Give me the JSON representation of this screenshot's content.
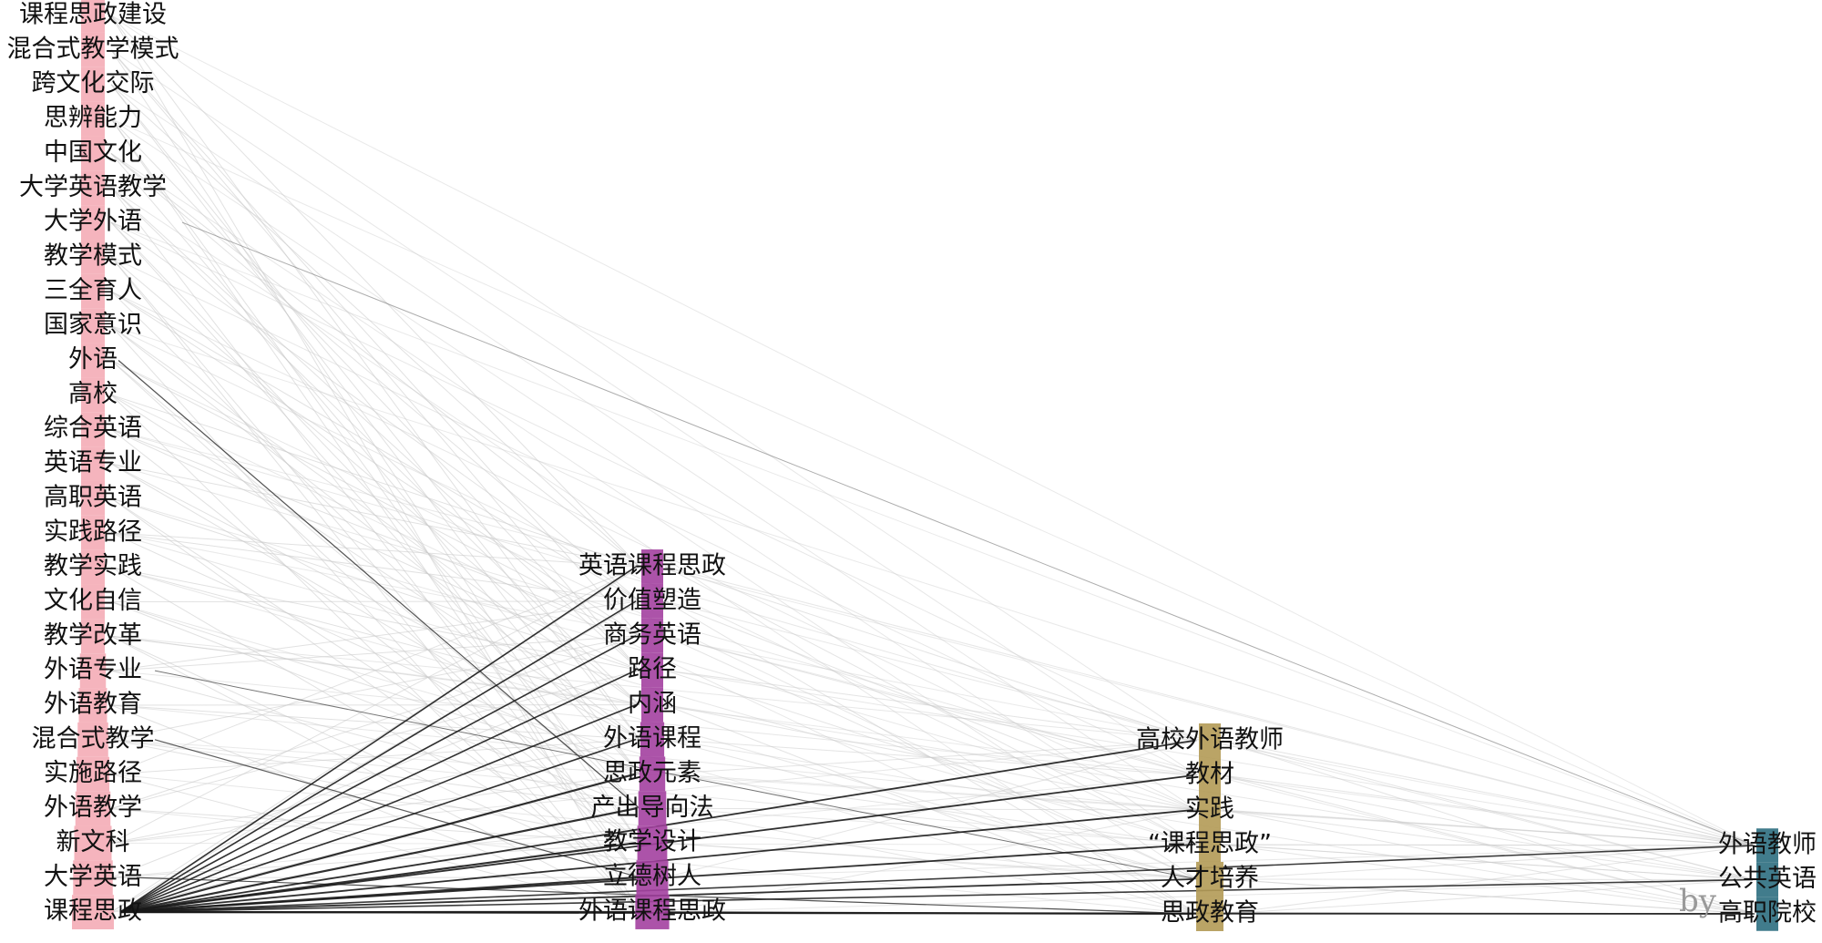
{
  "colors": {
    "column_1": "#f3a7b2",
    "column_2": "#a340a0",
    "column_3": "#b29a55",
    "column_4": "#2c6e80",
    "strong_link": "#1a1a1a",
    "faint_link": "#c9c9c9"
  },
  "watermark": "by",
  "columns": [
    {
      "id": "col1",
      "items": [
        "课程思政建设",
        "混合式教学模式",
        "跨文化交际",
        "思辨能力",
        "中国文化",
        "大学英语教学",
        "大学外语",
        "教学模式",
        "三全育人",
        "国家意识",
        "外语",
        "高校",
        "综合英语",
        "英语专业",
        "高职英语",
        "实践路径",
        "教学实践",
        "文化自信",
        "教学改革",
        "外语专业",
        "外语教育",
        "混合式教学",
        "实施路径",
        "外语教学",
        "新文科",
        "大学英语",
        "课程思政"
      ]
    },
    {
      "id": "col2",
      "items": [
        "英语课程思政",
        "价值塑造",
        "商务英语",
        "路径",
        "内涵",
        "外语课程",
        "思政元素",
        "产出导向法",
        "教学设计",
        "立德树人",
        "外语课程思政"
      ]
    },
    {
      "id": "col3",
      "items": [
        "高校外语教师",
        "教材",
        "实践",
        "“课程思政”",
        "人才培养",
        "思政教育"
      ]
    },
    {
      "id": "col4",
      "items": [
        "外语教师",
        "公共英语",
        "高职院校"
      ]
    }
  ]
}
